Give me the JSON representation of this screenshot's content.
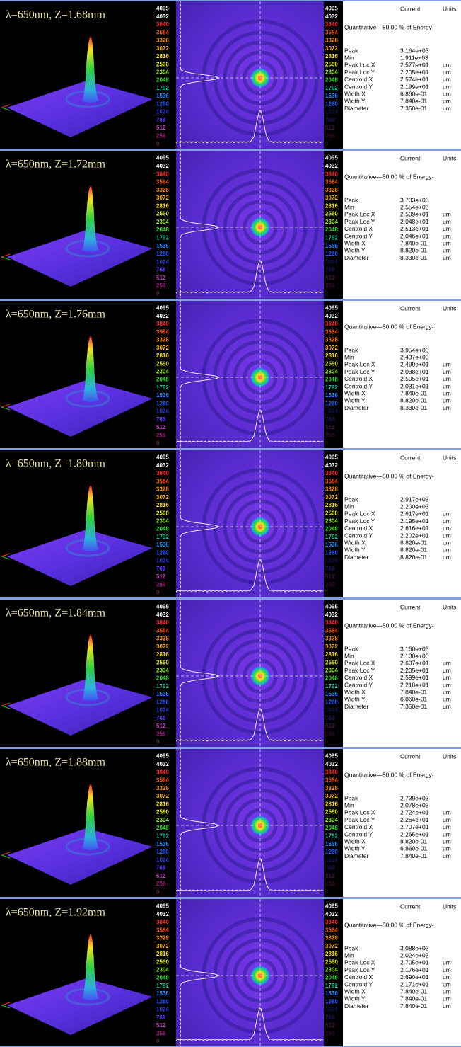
{
  "scale": {
    "labels": [
      "4095",
      "4032",
      "3840",
      "3584",
      "3328",
      "3072",
      "2816",
      "2560",
      "2304",
      "2048",
      "1792",
      "1536",
      "1280",
      "1024",
      "768",
      "512",
      "256",
      "0"
    ]
  },
  "table_header": {
    "current": "Current",
    "units": "Units",
    "quantitative": "Quantitative—50.00 % of Energy-"
  },
  "row_labels": [
    "Peak",
    "Min",
    "Peak Loc X",
    "Peak Loc Y",
    "Centroid X",
    "Centroid Y",
    "Width X",
    "Width Y",
    "Diameter"
  ],
  "unit": "um",
  "panels": [
    {
      "label": "λ=650nm, Z=1.68mm",
      "values": [
        "3.164e+03",
        "1.911e+03",
        "2.577e+01",
        "2.205e+01",
        "2.574e+01",
        "2.199e+01",
        "6.860e-01",
        "7.840e-01",
        "7.350e-01"
      ]
    },
    {
      "label": "λ=650nm, Z=1.72mm",
      "values": [
        "3.783e+03",
        "2.554e+03",
        "2.509e+01",
        "2.048e+01",
        "2.513e+01",
        "2.046e+01",
        "7.840e-01",
        "8.820e-01",
        "8.330e-01"
      ]
    },
    {
      "label": "λ=650nm, Z=1.76mm",
      "values": [
        "3.954e+03",
        "2.437e+03",
        "2.499e+01",
        "2.038e+01",
        "2.505e+01",
        "2.031e+01",
        "7.840e-01",
        "8.820e-01",
        "8.330e-01"
      ]
    },
    {
      "label": "λ=650nm, Z=1.80mm",
      "values": [
        "2.917e+03",
        "2.200e+03",
        "2.617e+01",
        "2.195e+01",
        "2.616e+01",
        "2.202e+01",
        "8.820e-01",
        "8.820e-01",
        "8.820e-01"
      ]
    },
    {
      "label": "λ=650nm, Z=1.84mm",
      "values": [
        "3.160e+03",
        "2.130e+03",
        "2.607e+01",
        "2.205e+01",
        "2.599e+01",
        "2.218e+01",
        "7.840e-01",
        "6.860e-01",
        "7.350e-01"
      ]
    },
    {
      "label": "λ=650nm, Z=1.88mm",
      "values": [
        "2.739e+03",
        "2.078e+03",
        "2.724e+01",
        "2.264e+01",
        "2.707e+01",
        "2.265e+01",
        "8.820e-01",
        "6.860e-01",
        "7.840e-01"
      ]
    },
    {
      "label": "λ=650nm, Z=1.92mm",
      "values": [
        "3.088e+03",
        "2.024e+03",
        "2.705e+01",
        "2.176e+01",
        "2.690e+01",
        "2.171e+01",
        "7.840e-01",
        "7.840e-01",
        "7.840e-01"
      ]
    }
  ]
}
